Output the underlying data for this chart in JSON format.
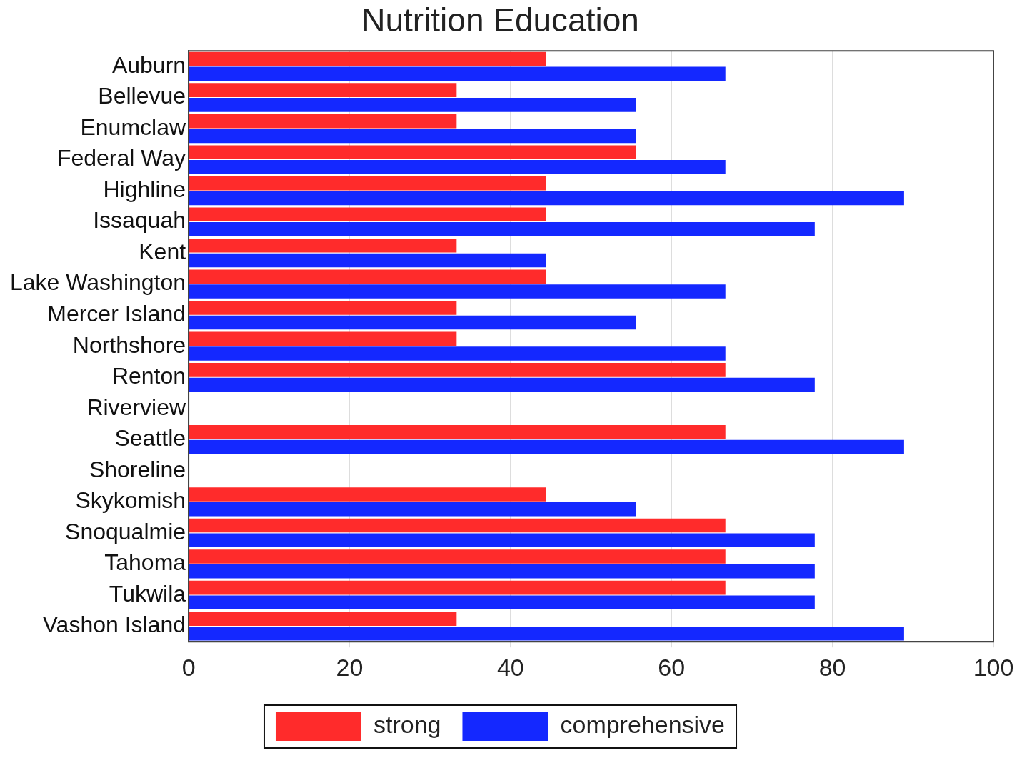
{
  "chart_data": {
    "type": "bar",
    "orientation": "horizontal",
    "title": "Nutrition Education",
    "categories": [
      "Auburn",
      "Bellevue",
      "Enumclaw",
      "Federal Way",
      "Highline",
      "Issaquah",
      "Kent",
      "Lake Washington",
      "Mercer Island",
      "Northshore",
      "Renton",
      "Riverview",
      "Seattle",
      "Shoreline",
      "Skykomish",
      "Snoqualmie",
      "Tahoma",
      "Tukwila",
      "Vashon Island"
    ],
    "series": [
      {
        "name": "strong",
        "color": "#ff2b2b",
        "values": [
          44.4,
          33.3,
          33.3,
          55.6,
          44.4,
          44.4,
          33.3,
          44.4,
          33.3,
          33.3,
          66.7,
          null,
          66.7,
          null,
          44.4,
          66.7,
          66.7,
          66.7,
          33.3
        ]
      },
      {
        "name": "comprehensive",
        "color": "#1428ff",
        "values": [
          66.7,
          55.6,
          55.6,
          66.7,
          88.9,
          77.8,
          44.4,
          66.7,
          55.6,
          66.7,
          77.8,
          null,
          88.9,
          null,
          55.6,
          77.8,
          77.8,
          77.8,
          88.9
        ]
      }
    ],
    "xlim": [
      0,
      100
    ],
    "xticks": [
      0,
      20,
      40,
      60,
      80,
      100
    ],
    "grid": "x",
    "legend": "bottom"
  }
}
